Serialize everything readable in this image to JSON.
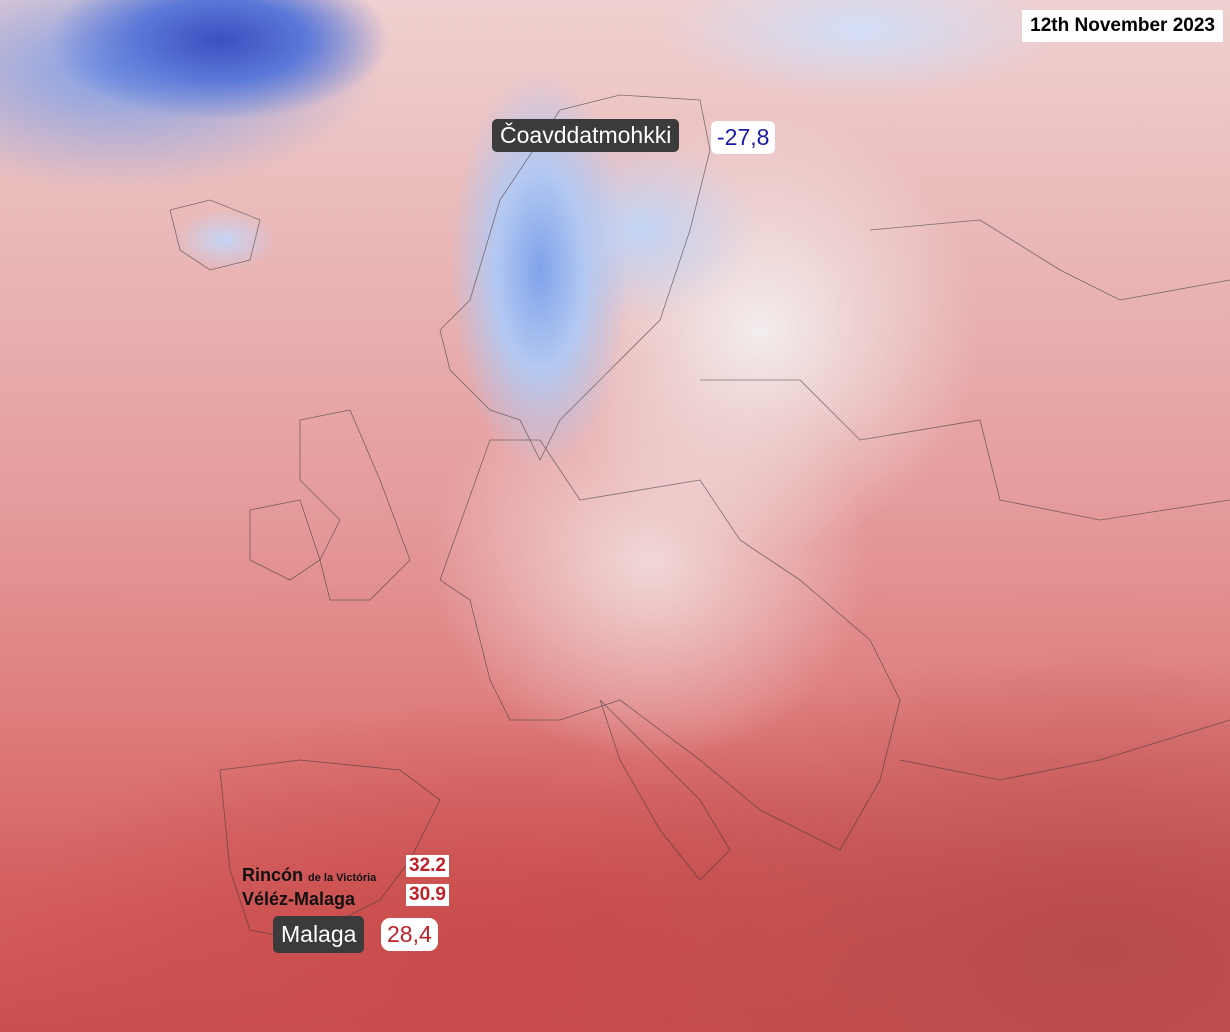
{
  "date": "12th November 2023",
  "labels": {
    "north": {
      "name": "Čoavddatmohkki",
      "value": "-27,8",
      "value_color": "#1a1aa8"
    },
    "malaga": {
      "name": "Malaga",
      "value": "28,4",
      "value_color": "#c0202a"
    },
    "rincon": {
      "name_bold": "Rincón",
      "name_small": "de la Victória",
      "value": "32.2"
    },
    "velez": {
      "name": "Véléz-Malaga",
      "value": "30.9"
    }
  },
  "colors": {
    "cold": "#3c4fc0",
    "neutral": "#f3eded",
    "warm": "#c95050"
  }
}
